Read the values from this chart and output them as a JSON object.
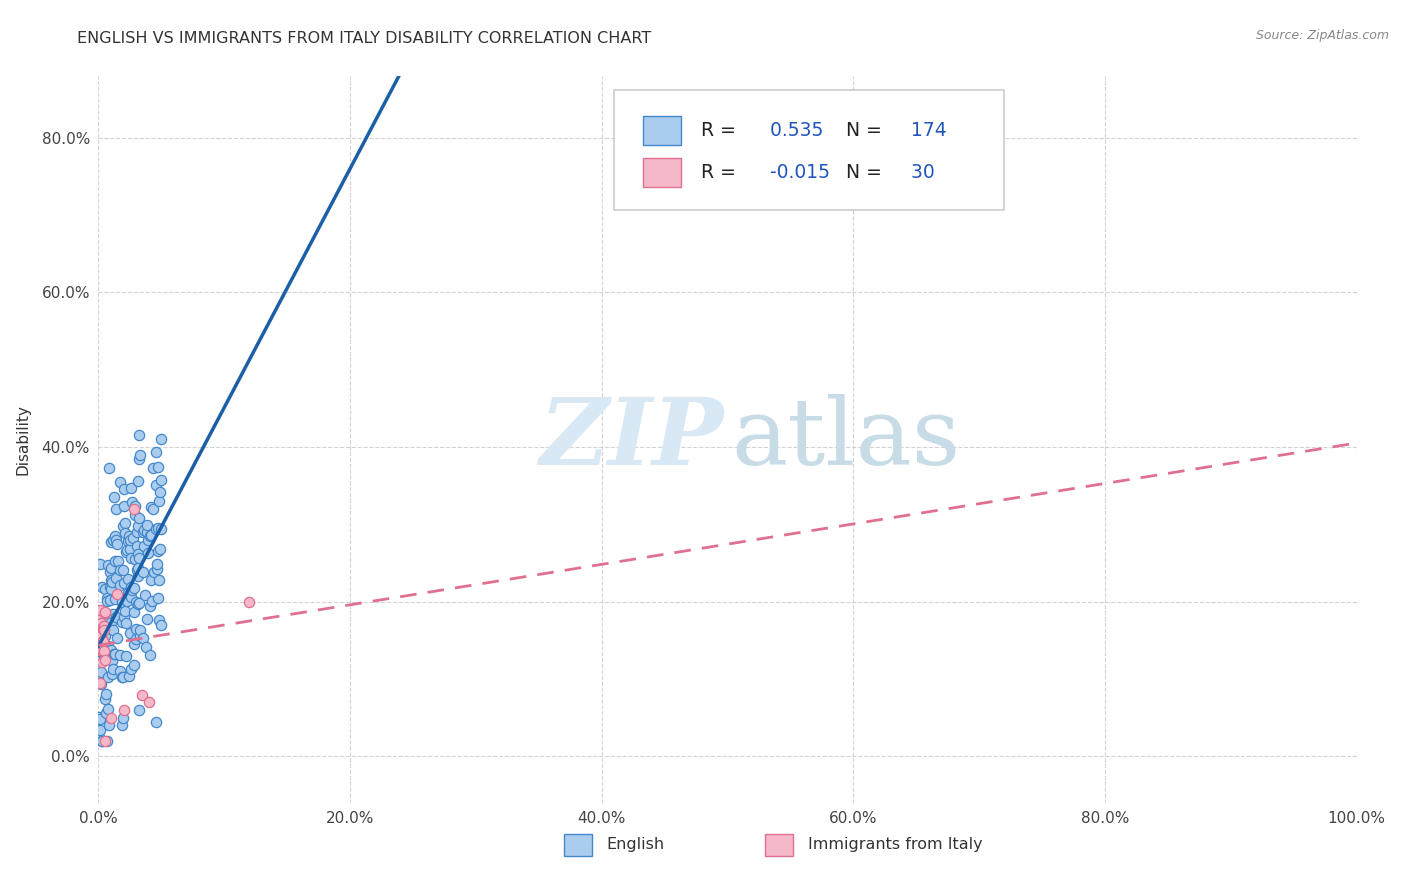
{
  "title": "ENGLISH VS IMMIGRANTS FROM ITALY DISABILITY CORRELATION CHART",
  "source": "Source: ZipAtlas.com",
  "ylabel": "Disability",
  "r_english": 0.535,
  "n_english": 174,
  "r_italy": -0.015,
  "n_italy": 30,
  "color_english": "#aaccee",
  "color_italy": "#f4b8c8",
  "edge_english": "#4488cc",
  "edge_italy": "#e07090",
  "line_english": "#1a5fa8",
  "line_italy": "#e07090",
  "xmin": 0.0,
  "xmax": 1.0,
  "ymin": -0.06,
  "ymax": 0.88,
  "legend_blue_color": "#2255bb",
  "bottom_label_english": "English",
  "bottom_label_italy": "Immigrants from Italy",
  "watermark_zip": "ZIP",
  "watermark_atlas": "atlas"
}
